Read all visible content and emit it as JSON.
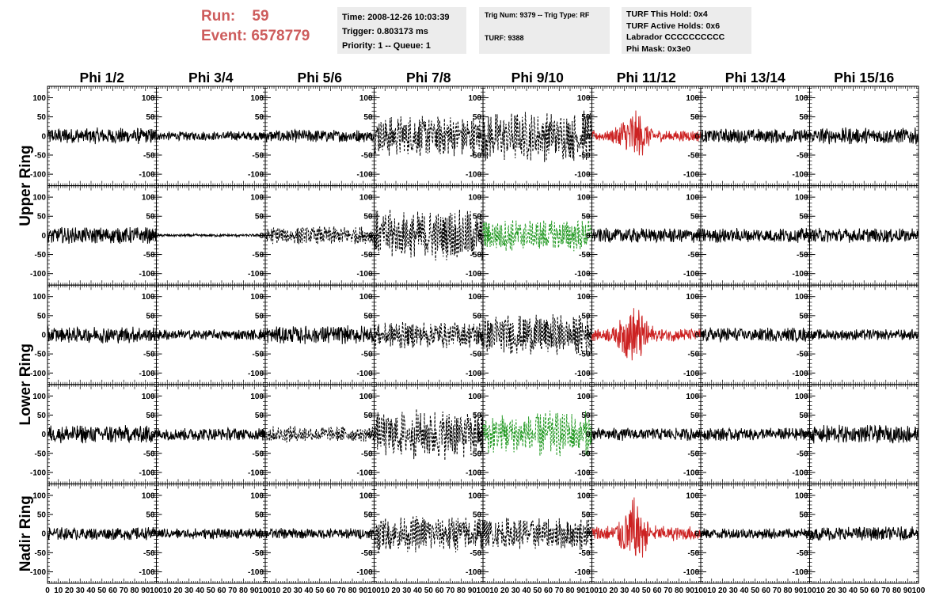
{
  "header": {
    "run_label": "Run:",
    "run_value": "59",
    "event_label": "Event:",
    "event_value": "6578779"
  },
  "info_time": {
    "time": "Time: 2008-12-26 10:03:39",
    "trigger": "Trigger: 0.803173 ms",
    "priority": "Priority: 1 -- Queue: 1"
  },
  "info_trig": {
    "line1": "Trig Num: 9379 -- Trig Type: RF",
    "line2": "TURF: 9388"
  },
  "info_turf": {
    "hold": "TURF This Hold: 0x4",
    "active": "TURF Active Holds: 0x6",
    "labrador": "Labrador CCCCCCCCCC",
    "phimask": "Phi Mask: 0x3e0"
  },
  "colors": {
    "header_red": "#cd5c5c",
    "trace_normal": "#000000",
    "trace_red": "#cc2222",
    "trace_green": "#229922",
    "info_bg": "#ececec"
  },
  "chart_data": {
    "type": "line",
    "columns": [
      "Phi 1/2",
      "Phi 3/4",
      "Phi 5/6",
      "Phi 7/8",
      "Phi 9/10",
      "Phi 11/12",
      "Phi 13/14",
      "Phi 15/16"
    ],
    "rows": [
      "Upper Ring",
      "Upper Ring",
      "Lower Ring",
      "Lower Ring",
      "Nadir Ring"
    ],
    "row_labels": [
      "Upper Ring",
      "Lower Ring",
      "Nadir Ring"
    ],
    "xlim": [
      0,
      100
    ],
    "ylim": [
      -130,
      130
    ],
    "x_tick_labels": [
      "0",
      "10",
      "20",
      "30",
      "40",
      "50",
      "60",
      "70",
      "80",
      "90",
      "100"
    ],
    "y_tick_labels": [
      "100",
      "50",
      "0",
      "-50",
      "-100"
    ],
    "panels": [
      [
        {
          "style": "solid",
          "color": "black",
          "amp": 18
        },
        {
          "style": "solid",
          "color": "black",
          "amp": 10
        },
        {
          "style": "solid",
          "color": "black",
          "amp": 14
        },
        {
          "style": "dashed",
          "color": "black",
          "amp": 45
        },
        {
          "style": "dashed",
          "color": "black",
          "amp": 55
        },
        {
          "style": "solid",
          "color": "red",
          "amp": 35
        },
        {
          "style": "solid",
          "color": "black",
          "amp": 16
        },
        {
          "style": "solid",
          "color": "black",
          "amp": 18
        }
      ],
      [
        {
          "style": "solid",
          "color": "black",
          "amp": 18
        },
        {
          "style": "solid",
          "color": "black",
          "amp": 3
        },
        {
          "style": "dashed",
          "color": "black",
          "amp": 20
        },
        {
          "style": "dashed",
          "color": "black",
          "amp": 55
        },
        {
          "style": "dashed",
          "color": "green",
          "amp": 35
        },
        {
          "style": "solid",
          "color": "black",
          "amp": 16
        },
        {
          "style": "solid",
          "color": "black",
          "amp": 16
        },
        {
          "style": "solid",
          "color": "black",
          "amp": 16
        }
      ],
      [
        {
          "style": "solid",
          "color": "black",
          "amp": 18
        },
        {
          "style": "solid",
          "color": "black",
          "amp": 12
        },
        {
          "style": "solid",
          "color": "black",
          "amp": 20
        },
        {
          "style": "dashed",
          "color": "black",
          "amp": 30
        },
        {
          "style": "dashed",
          "color": "black",
          "amp": 45
        },
        {
          "style": "solid",
          "color": "red",
          "amp": 40
        },
        {
          "style": "solid",
          "color": "black",
          "amp": 16
        },
        {
          "style": "solid",
          "color": "black",
          "amp": 12
        }
      ],
      [
        {
          "style": "solid",
          "color": "black",
          "amp": 20
        },
        {
          "style": "solid",
          "color": "black",
          "amp": 14
        },
        {
          "style": "dashed",
          "color": "black",
          "amp": 18
        },
        {
          "style": "dashed",
          "color": "black",
          "amp": 55
        },
        {
          "style": "dashed",
          "color": "green",
          "amp": 50
        },
        {
          "style": "solid",
          "color": "black",
          "amp": 14
        },
        {
          "style": "solid",
          "color": "black",
          "amp": 14
        },
        {
          "style": "solid",
          "color": "black",
          "amp": 20
        }
      ],
      [
        {
          "style": "solid",
          "color": "black",
          "amp": 14
        },
        {
          "style": "solid",
          "color": "black",
          "amp": 12
        },
        {
          "style": "solid",
          "color": "black",
          "amp": 12
        },
        {
          "style": "dashed",
          "color": "black",
          "amp": 40
        },
        {
          "style": "dashed",
          "color": "black",
          "amp": 35
        },
        {
          "style": "solid",
          "color": "red",
          "amp": 45
        },
        {
          "style": "solid",
          "color": "black",
          "amp": 12
        },
        {
          "style": "solid",
          "color": "black",
          "amp": 15
        }
      ]
    ]
  }
}
